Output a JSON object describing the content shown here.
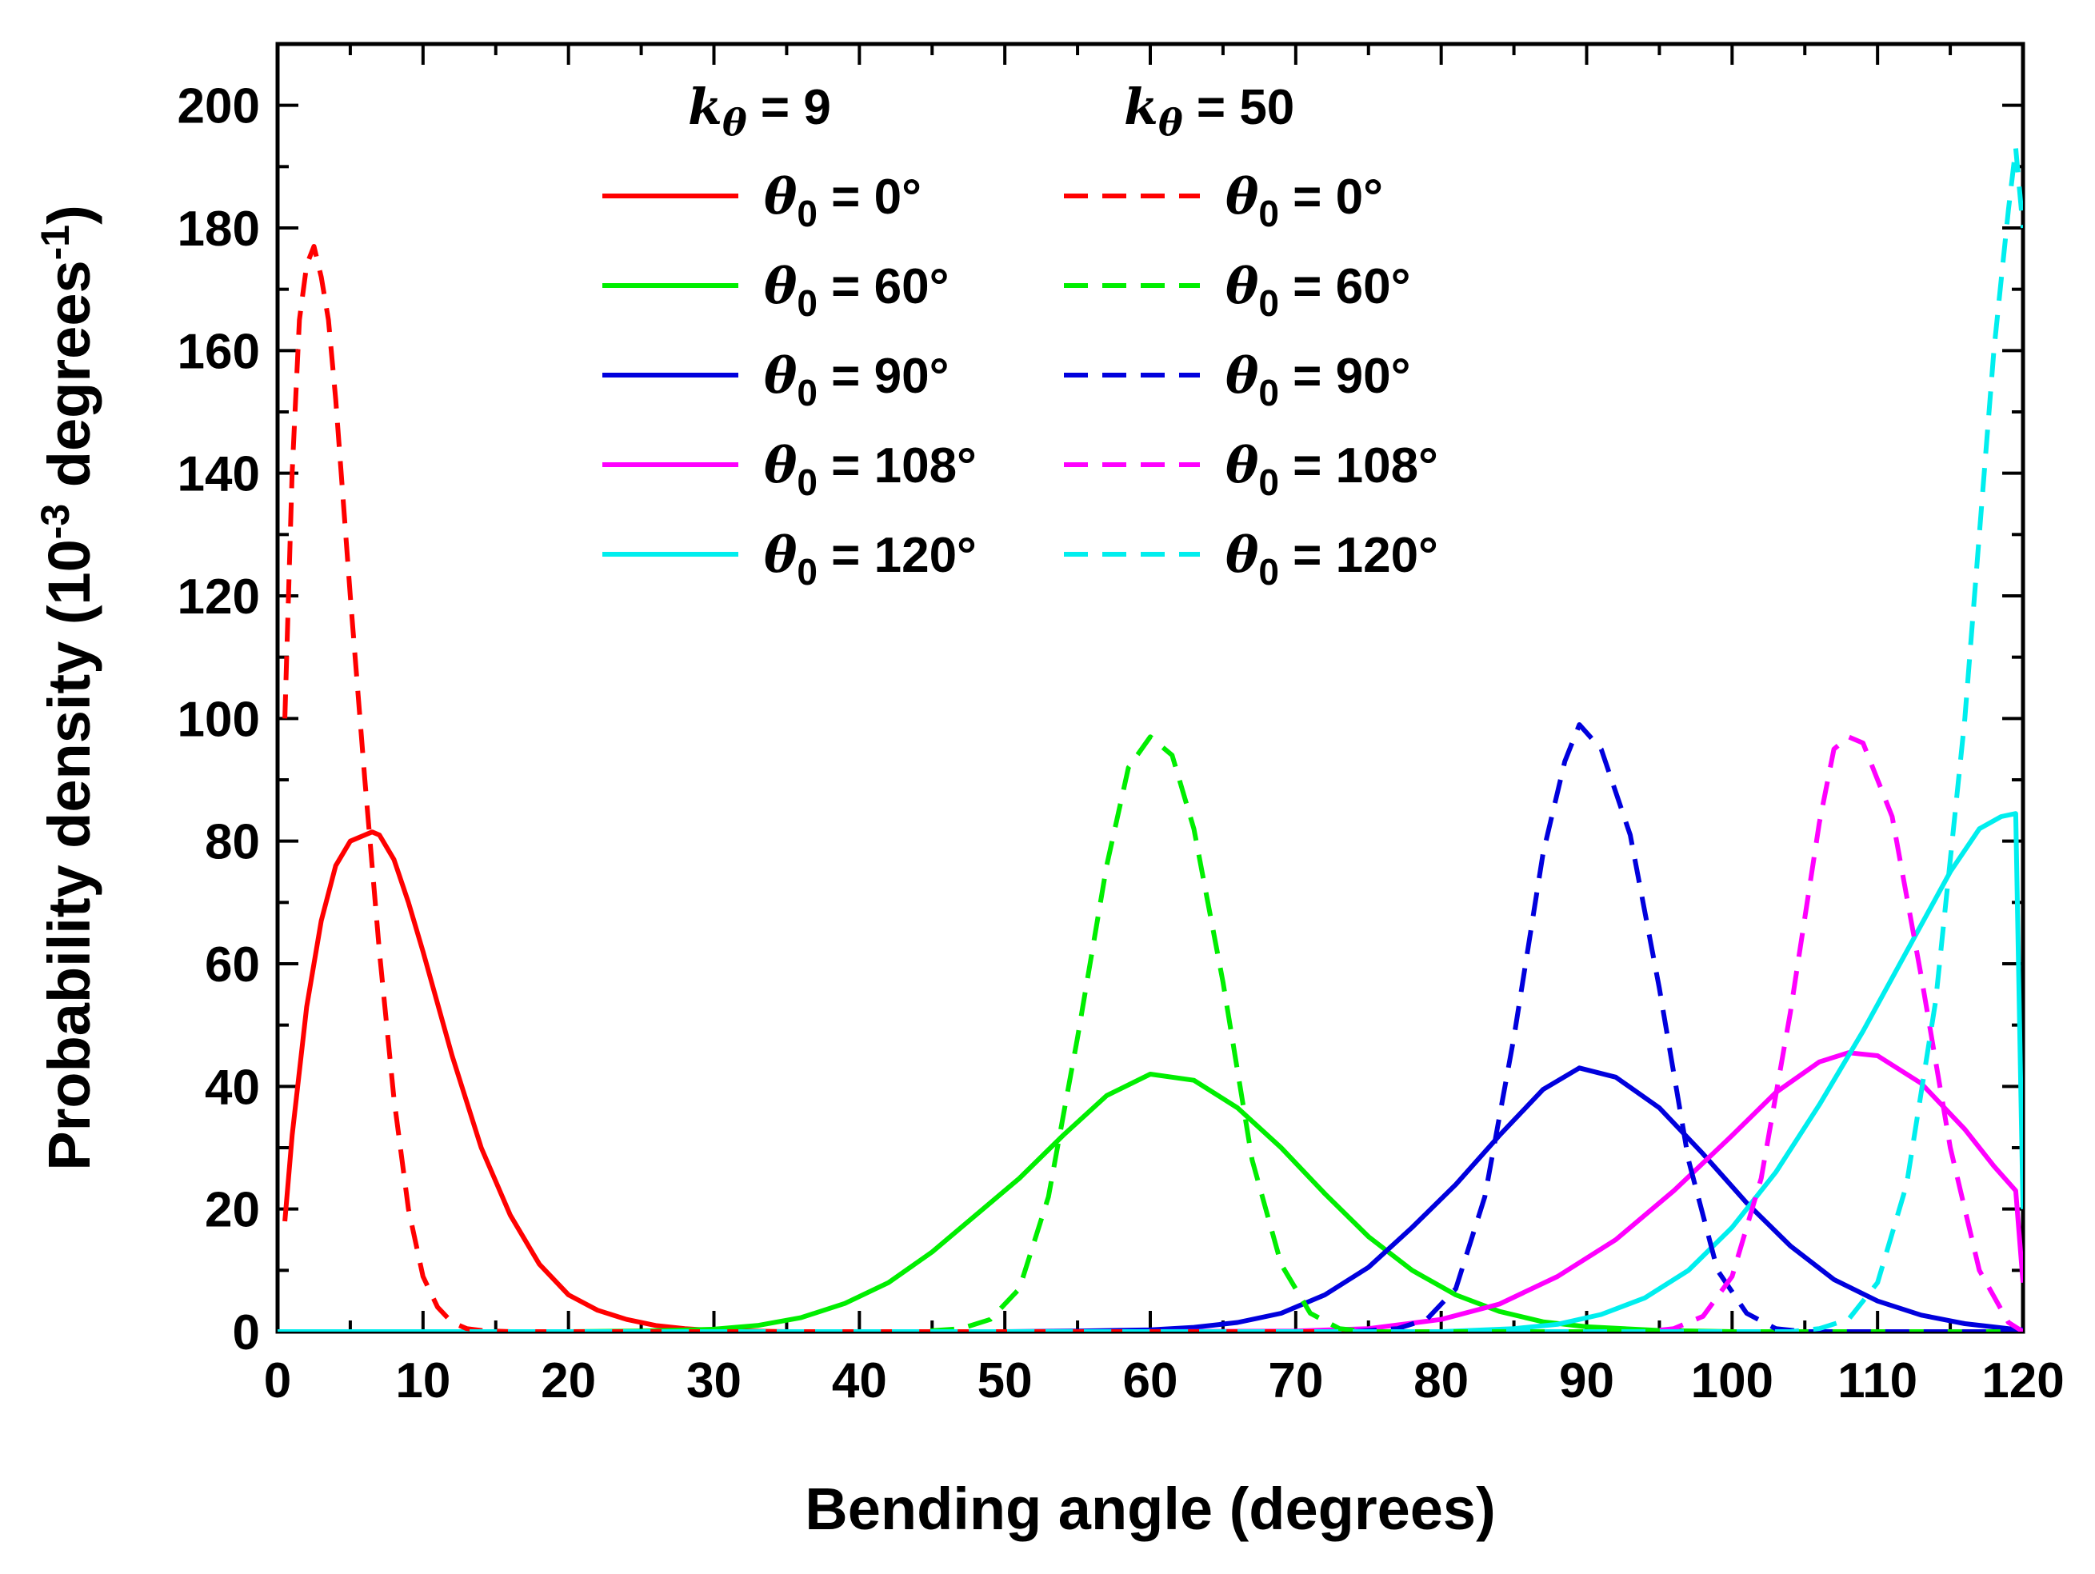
{
  "chart_data": {
    "type": "line",
    "xlabel": "Bending angle (degrees)",
    "ylabel": "Probability density (10",
    "ylabel_exp": "-3",
    "ylabel_tail": " degrees",
    "ylabel_tail_exp": "-1",
    "ylabel_close": ")",
    "xlim": [
      0,
      120
    ],
    "ylim": [
      0,
      210
    ],
    "x_ticks": [
      0,
      10,
      20,
      30,
      40,
      50,
      60,
      70,
      80,
      90,
      100,
      110,
      120
    ],
    "y_ticks": [
      0,
      20,
      40,
      60,
      80,
      100,
      120,
      140,
      160,
      180,
      200
    ],
    "grid": false,
    "legend": {
      "placement": "top-center",
      "groups": [
        {
          "k_symbol": "k",
          "k_sub": "θ",
          "k_value": " = 9",
          "style": "solid"
        },
        {
          "k_symbol": "k",
          "k_sub": "θ",
          "k_value": " = 50",
          "style": "dashed"
        }
      ],
      "entries": [
        {
          "theta_symbol": "θ",
          "theta_sub": "0",
          "label": " = 0°",
          "color": "#ff0000"
        },
        {
          "theta_symbol": "θ",
          "theta_sub": "0",
          "label": " = 60°",
          "color": "#00ee00"
        },
        {
          "theta_symbol": "θ",
          "theta_sub": "0",
          "label": " = 90°",
          "color": "#0000dd"
        },
        {
          "theta_symbol": "θ",
          "theta_sub": "0",
          "label": " = 108°",
          "color": "#ff00ff"
        },
        {
          "theta_symbol": "θ",
          "theta_sub": "0",
          "label": " = 120°",
          "color": "#00eeee"
        }
      ]
    },
    "series": [
      {
        "group": "k9",
        "theta0": 0,
        "color": "#ff0000",
        "dash": false,
        "x": [
          0.5,
          1,
          2,
          3,
          4,
          5,
          6,
          6.5,
          7,
          8,
          9,
          10,
          12,
          14,
          16,
          18,
          20,
          22,
          24,
          26,
          28,
          30,
          35,
          40,
          50,
          60,
          120
        ],
        "y": [
          18,
          32,
          53,
          67,
          76,
          80,
          81,
          81.5,
          81,
          77,
          70,
          62,
          45,
          30,
          19,
          11,
          6,
          3.5,
          2,
          1,
          0.5,
          0.2,
          0,
          0,
          0,
          0,
          0
        ]
      },
      {
        "group": "k9",
        "theta0": 60,
        "color": "#00ee00",
        "dash": false,
        "x": [
          0,
          20,
          25,
          30,
          33,
          36,
          39,
          42,
          45,
          48,
          51,
          54,
          57,
          60,
          63,
          66,
          69,
          72,
          75,
          78,
          81,
          84,
          87,
          90,
          95,
          100,
          120
        ],
        "y": [
          0,
          0,
          0.1,
          0.4,
          1.0,
          2.3,
          4.6,
          8,
          13,
          19,
          25,
          32,
          38.5,
          42,
          41,
          36.5,
          30,
          22.5,
          15.5,
          10,
          6,
          3.3,
          1.6,
          0.8,
          0.2,
          0,
          0
        ]
      },
      {
        "group": "k9",
        "theta0": 90,
        "color": "#0000dd",
        "dash": false,
        "x": [
          0,
          50,
          55,
          60,
          63,
          66,
          69,
          72,
          75,
          78,
          81,
          84,
          87,
          89.5,
          92,
          95,
          98,
          101,
          104,
          107,
          110,
          113,
          116,
          119,
          120
        ],
        "y": [
          0,
          0,
          0.1,
          0.3,
          0.7,
          1.5,
          3,
          6,
          10.5,
          17,
          24,
          32,
          39.5,
          43,
          41.5,
          36.5,
          29,
          21,
          14,
          8.5,
          5,
          2.7,
          1.3,
          0.5,
          0.3
        ]
      },
      {
        "group": "k9",
        "theta0": 108,
        "color": "#ff00ff",
        "dash": false,
        "x": [
          0,
          60,
          70,
          75,
          80,
          84,
          88,
          92,
          96,
          100,
          103,
          106,
          108,
          110,
          113,
          116,
          118,
          119.5,
          120
        ],
        "y": [
          0,
          0,
          0.1,
          0.5,
          2,
          4.5,
          9,
          15,
          23,
          32,
          39,
          44,
          45.5,
          45,
          40.5,
          33,
          27,
          23,
          8
        ]
      },
      {
        "group": "k9",
        "theta0": 120,
        "color": "#00eeee",
        "dash": false,
        "x": [
          0,
          80,
          85,
          88,
          91,
          94,
          97,
          100,
          103,
          106,
          109,
          112,
          115,
          117,
          118.5,
          119.5,
          120
        ],
        "y": [
          0,
          0,
          0.5,
          1.2,
          2.8,
          5.5,
          10,
          17,
          26,
          37,
          49,
          62,
          75,
          82,
          84,
          84.5,
          20
        ]
      },
      {
        "group": "k50",
        "theta0": 0,
        "color": "#ff0000",
        "dash": true,
        "x": [
          0.5,
          1,
          1.5,
          2,
          2.5,
          3,
          3.5,
          4,
          5,
          6,
          7,
          8,
          9,
          10,
          11,
          12,
          13,
          14,
          16,
          20,
          30,
          60,
          120
        ],
        "y": [
          100,
          140,
          165,
          174,
          177,
          172,
          165,
          152,
          120,
          90,
          62,
          38,
          20,
          9,
          4,
          1.5,
          0.5,
          0.2,
          0,
          0,
          0,
          0,
          0
        ]
      },
      {
        "group": "k50",
        "theta0": 60,
        "color": "#00ee00",
        "dash": true,
        "x": [
          0,
          44,
          47,
          49,
          51,
          53,
          55,
          57,
          58.5,
          60,
          61.5,
          63,
          65,
          67,
          69,
          71,
          73,
          75,
          120
        ],
        "y": [
          0,
          0,
          0.5,
          2,
          7,
          22,
          48,
          76,
          92,
          97,
          94,
          82,
          57,
          28,
          11,
          3,
          0.5,
          0,
          0
        ]
      },
      {
        "group": "k50",
        "theta0": 90,
        "color": "#0000dd",
        "dash": true,
        "x": [
          0,
          74,
          77,
          79,
          81,
          83,
          85,
          87,
          88.5,
          89.5,
          91,
          93,
          95,
          97,
          99,
          101,
          103,
          105,
          120
        ],
        "y": [
          0,
          0,
          0.5,
          2,
          7,
          22,
          48,
          78,
          93,
          99,
          95,
          81,
          56,
          28,
          10,
          3,
          0.5,
          0,
          0
        ]
      },
      {
        "group": "k50",
        "theta0": 108,
        "color": "#ff00ff",
        "dash": true,
        "x": [
          0,
          94,
          96,
          98,
          100,
          102,
          104,
          106,
          107,
          108,
          109,
          111,
          113,
          115,
          117,
          119,
          120
        ],
        "y": [
          0,
          0,
          0.5,
          2.5,
          9,
          25,
          52,
          83,
          95,
          97,
          96,
          84,
          58,
          30,
          10,
          1.5,
          0
        ]
      },
      {
        "group": "k50",
        "theta0": 120,
        "color": "#00eeee",
        "dash": true,
        "x": [
          0,
          104,
          106,
          108,
          110,
          112,
          114,
          116,
          117,
          118,
          119,
          119.5,
          120
        ],
        "y": [
          0,
          0,
          0.5,
          2,
          8,
          24,
          54,
          100,
          130,
          160,
          183,
          193,
          180
        ]
      }
    ]
  }
}
